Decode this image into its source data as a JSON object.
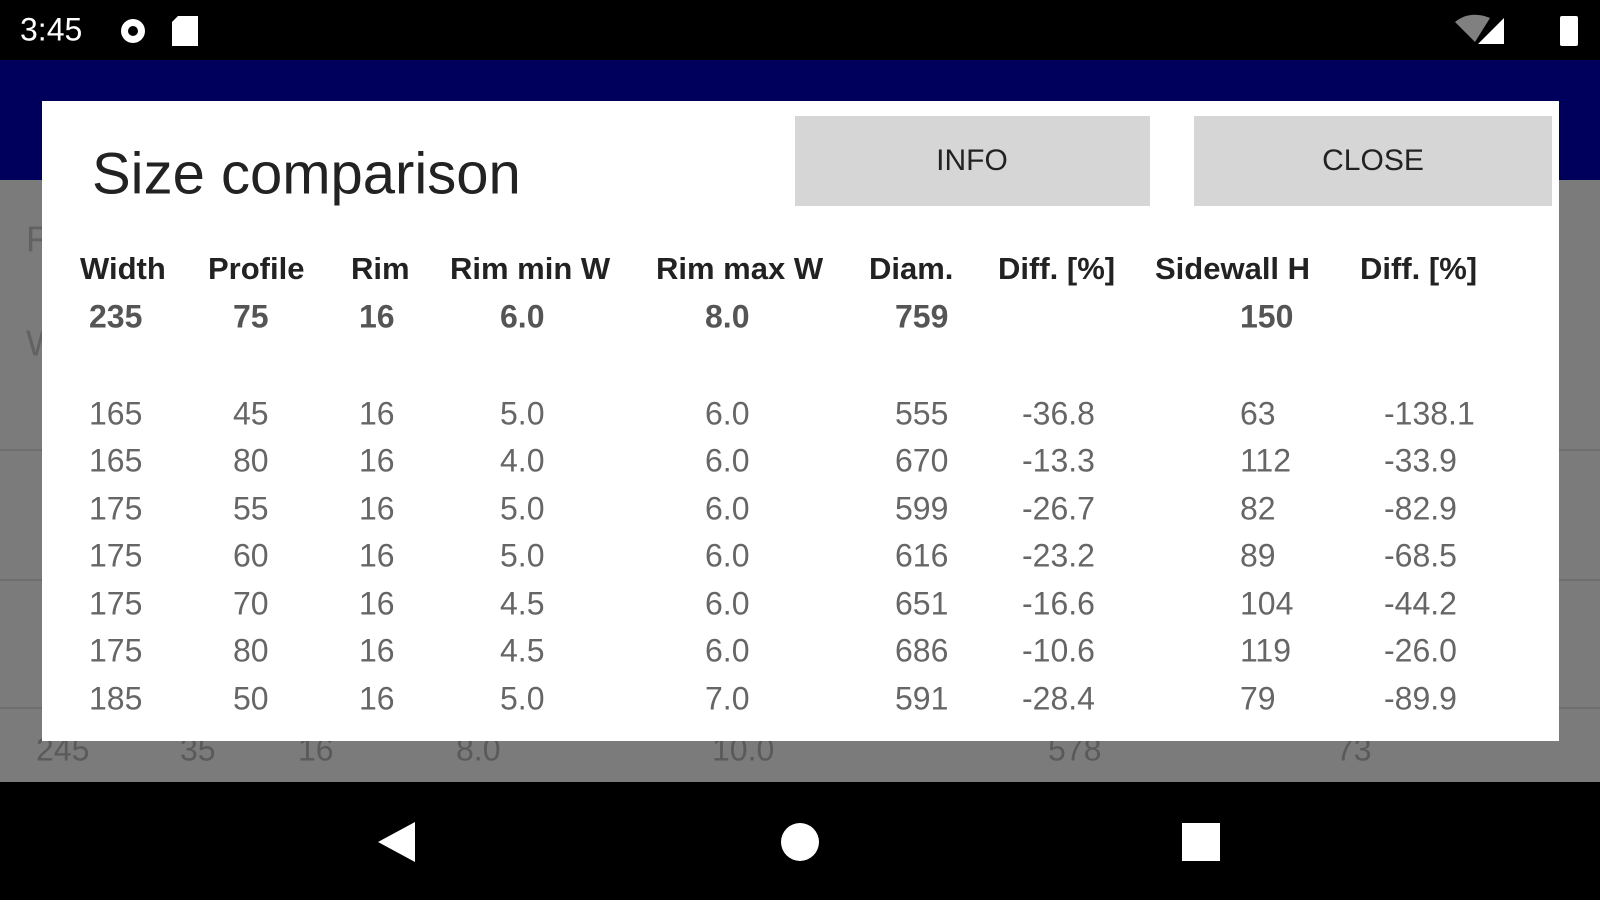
{
  "status_bar": {
    "time": "3:45"
  },
  "background": {
    "labels": [
      "F",
      "W"
    ],
    "last_row": [
      "245",
      "35",
      "16",
      "8.0",
      "10.0",
      "578",
      "73"
    ]
  },
  "dialog": {
    "title": "Size comparison",
    "buttons": [
      "INFO",
      "CLOSE"
    ],
    "table": {
      "headers": [
        "Width",
        "Profile",
        "Rim",
        "Rim min W",
        "Rim max W",
        "Diam.",
        "Diff. [%]",
        "Sidewall H",
        "Diff. [%]"
      ],
      "reference": [
        "235",
        "75",
        "16",
        "6.0",
        "8.0",
        "759",
        null,
        "150",
        null
      ],
      "rows": [
        [
          "165",
          "45",
          "16",
          "5.0",
          "6.0",
          "555",
          "-36.8",
          "63",
          "-138.1"
        ],
        [
          "165",
          "80",
          "16",
          "4.0",
          "6.0",
          "670",
          "-13.3",
          "112",
          "-33.9"
        ],
        [
          "175",
          "55",
          "16",
          "5.0",
          "6.0",
          "599",
          "-26.7",
          "82",
          "-82.9"
        ],
        [
          "175",
          "60",
          "16",
          "5.0",
          "6.0",
          "616",
          "-23.2",
          "89",
          "-68.5"
        ],
        [
          "175",
          "70",
          "16",
          "4.5",
          "6.0",
          "651",
          "-16.6",
          "104",
          "-44.2"
        ],
        [
          "175",
          "80",
          "16",
          "4.5",
          "6.0",
          "686",
          "-10.6",
          "119",
          "-26.0"
        ],
        [
          "185",
          "50",
          "16",
          "5.0",
          "7.0",
          "591",
          "-28.4",
          "79",
          "-89.9"
        ]
      ]
    }
  }
}
